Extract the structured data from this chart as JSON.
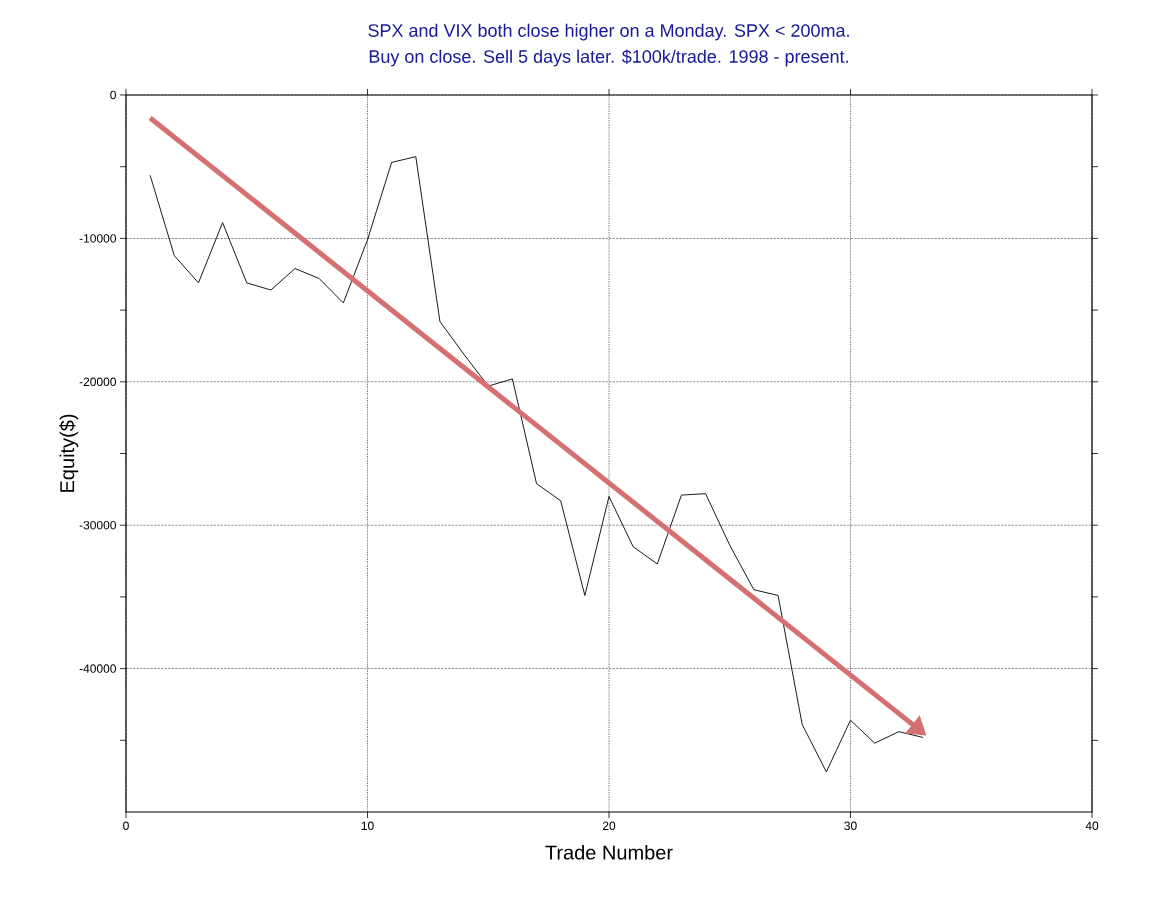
{
  "chart_data": {
    "type": "line",
    "title": "SPX and VIX both close higher on a Monday. SPX < 200ma.",
    "subtitle": "Buy on close. Sell 5 days later. $100k/trade. 1998 - present.",
    "xlabel": "Trade Number",
    "ylabel": "Equity($)",
    "x": [
      1,
      2,
      3,
      4,
      5,
      6,
      7,
      8,
      9,
      10,
      11,
      12,
      13,
      14,
      15,
      16,
      17,
      18,
      19,
      20,
      21,
      22,
      23,
      24,
      25,
      26,
      27,
      28,
      29,
      30,
      31,
      32,
      33
    ],
    "series": [
      {
        "color": "#000000",
        "values": [
          -5600,
          -11200,
          -13100,
          -8900,
          -13100,
          -13600,
          -12100,
          -12800,
          -14500,
          -10100,
          -4700,
          -4300,
          -15800,
          -18100,
          -20300,
          -19800,
          -27100,
          -28300,
          -34900,
          -28000,
          -31500,
          -32700,
          -27900,
          -27800,
          -31400,
          -34500,
          -34900,
          -43900,
          -47200,
          -43600,
          -45200,
          -44400,
          -44800
        ]
      },
      {
        "type": "line",
        "color": "#d47070",
        "x": [
          1,
          32.5
        ],
        "values": [
          -1600,
          -43800
        ]
      }
    ],
    "xlim": [
      0,
      40
    ],
    "ylim": [
      -50000,
      0
    ],
    "xticks": [
      0,
      10,
      20,
      30,
      40
    ],
    "yticks": [
      0,
      {
        "value": -5000,
        "label": null
      },
      -10000,
      {
        "value": -15000,
        "label": null
      },
      -20000,
      {
        "value": -25000,
        "label": null
      },
      -30000,
      {
        "value": -35000,
        "label": null
      },
      -40000,
      {
        "value": -45000,
        "label": null
      }
    ],
    "grid": true,
    "line_style": "solid"
  }
}
